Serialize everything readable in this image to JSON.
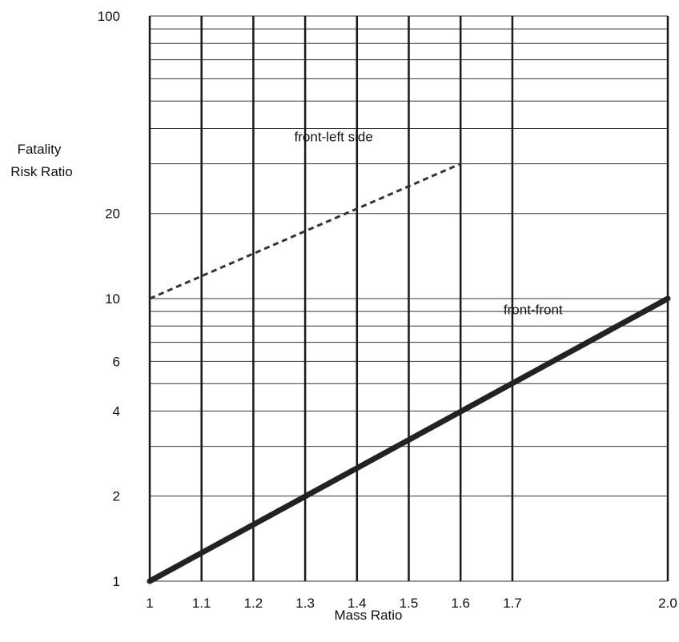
{
  "chart_data": {
    "type": "line",
    "title": "",
    "xlabel": "Mass Ratio",
    "ylabel_lines": [
      "Fatality",
      "Risk Ratio"
    ],
    "y_scale": "log",
    "xlim": [
      1.0,
      2.0
    ],
    "ylim": [
      1,
      100
    ],
    "grid": true,
    "x_ticks": [
      {
        "value": 1.0,
        "label": "1"
      },
      {
        "value": 1.1,
        "label": "1.1"
      },
      {
        "value": 1.2,
        "label": "1.2"
      },
      {
        "value": 1.3,
        "label": "1.3"
      },
      {
        "value": 1.4,
        "label": "1.4"
      },
      {
        "value": 1.5,
        "label": "1.5"
      },
      {
        "value": 1.6,
        "label": "1.6"
      },
      {
        "value": 1.7,
        "label": "1.7"
      },
      {
        "value": 2.0,
        "label": "2.0"
      }
    ],
    "y_tick_labels": [
      {
        "value": 1,
        "label": "1"
      },
      {
        "value": 2,
        "label": "2"
      },
      {
        "value": 4,
        "label": "4"
      },
      {
        "value": 6,
        "label": "6"
      },
      {
        "value": 10,
        "label": "10"
      },
      {
        "value": 20,
        "label": "20"
      },
      {
        "value": 100,
        "label": "100"
      }
    ],
    "y_gridlines": [
      1,
      2,
      3,
      4,
      5,
      6,
      7,
      8,
      9,
      10,
      20,
      30,
      40,
      50,
      60,
      70,
      80,
      90,
      100
    ],
    "series": [
      {
        "name": "front-left side",
        "style": "dashed",
        "color": "#333333",
        "x": [
          1.0,
          1.6
        ],
        "y": [
          10,
          30
        ]
      },
      {
        "name": "front-front",
        "style": "solid-thick",
        "color": "#222222",
        "x": [
          1.0,
          2.0
        ],
        "y": [
          1,
          10
        ]
      }
    ]
  }
}
